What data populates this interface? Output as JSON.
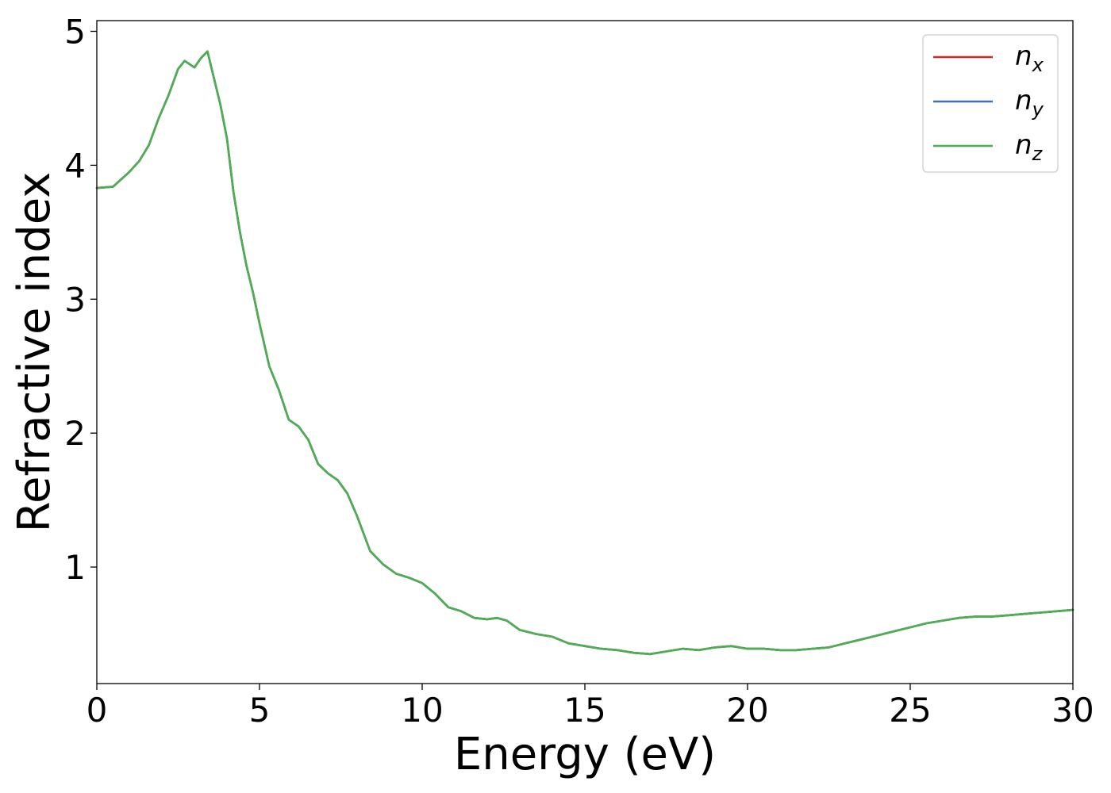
{
  "chart_data": {
    "type": "line",
    "xlabel": "Energy (eV)",
    "ylabel": "Refractive index",
    "xlim": [
      0,
      30
    ],
    "ylim": [
      0.13,
      5.08
    ],
    "x_ticks": [
      "0",
      "5",
      "10",
      "15",
      "20",
      "25",
      "30"
    ],
    "y_ticks": [
      "1",
      "2",
      "3",
      "4",
      "5"
    ],
    "grid": false,
    "legend_position": "top-right",
    "series": [
      {
        "name": "n",
        "subscript": "x",
        "color": "#d62728"
      },
      {
        "name": "n",
        "subscript": "y",
        "color": "#3a75b0"
      },
      {
        "name": "n",
        "subscript": "z",
        "color": "#4caf50"
      }
    ],
    "x": [
      0,
      0.5,
      1.0,
      1.3,
      1.6,
      1.9,
      2.2,
      2.5,
      2.7,
      3.0,
      3.2,
      3.4,
      3.6,
      3.8,
      4.0,
      4.2,
      4.4,
      4.6,
      4.8,
      5.0,
      5.3,
      5.6,
      5.9,
      6.2,
      6.5,
      6.8,
      7.1,
      7.4,
      7.7,
      8.0,
      8.4,
      8.8,
      9.2,
      9.6,
      10.0,
      10.4,
      10.8,
      11.2,
      11.6,
      12.0,
      12.3,
      12.6,
      13.0,
      13.5,
      14.0,
      14.5,
      15.0,
      15.5,
      16.0,
      16.5,
      17.0,
      17.5,
      18.0,
      18.5,
      19.0,
      19.5,
      20.0,
      20.5,
      21.0,
      21.5,
      22.0,
      22.5,
      23.0,
      23.5,
      24.0,
      24.5,
      25.0,
      25.5,
      26.0,
      26.5,
      27.0,
      27.5,
      28.0,
      28.5,
      29.0,
      29.5,
      30.0
    ],
    "y": [
      3.83,
      3.84,
      3.95,
      4.03,
      4.15,
      4.35,
      4.52,
      4.72,
      4.78,
      4.73,
      4.8,
      4.85,
      4.65,
      4.45,
      4.2,
      3.8,
      3.5,
      3.25,
      3.05,
      2.82,
      2.5,
      2.32,
      2.1,
      2.05,
      1.95,
      1.77,
      1.7,
      1.65,
      1.55,
      1.38,
      1.12,
      1.02,
      0.95,
      0.92,
      0.88,
      0.8,
      0.7,
      0.67,
      0.62,
      0.61,
      0.62,
      0.6,
      0.53,
      0.5,
      0.48,
      0.43,
      0.41,
      0.39,
      0.38,
      0.36,
      0.35,
      0.37,
      0.39,
      0.38,
      0.4,
      0.41,
      0.39,
      0.39,
      0.38,
      0.38,
      0.39,
      0.4,
      0.43,
      0.46,
      0.49,
      0.52,
      0.55,
      0.58,
      0.6,
      0.62,
      0.63,
      0.63,
      0.64,
      0.65,
      0.66,
      0.67,
      0.68
    ]
  }
}
